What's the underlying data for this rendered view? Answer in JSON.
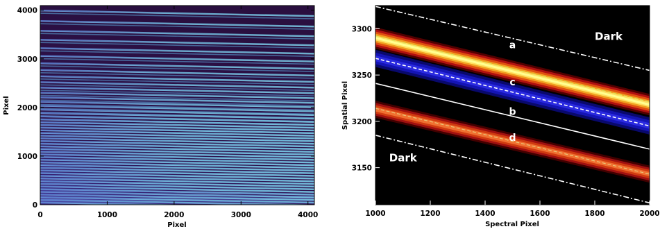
{
  "chart_data": [
    {
      "type": "heatmap",
      "description_panel": "left",
      "xlabel": "Pixel",
      "ylabel": "Pixel",
      "xlim": [
        0,
        4096
      ],
      "ylim": [
        0,
        4096
      ],
      "x_ticks": [
        0,
        1000,
        2000,
        3000,
        4000
      ],
      "y_ticks": [
        0,
        1000,
        2000,
        3000,
        4000
      ],
      "colors": {
        "background": "#2a0f3f",
        "trace": "#5a9fd2",
        "trace_highlight": "#8fd8f0"
      }
    },
    {
      "type": "heatmap",
      "description_panel": "right",
      "xlabel": "Spectral Pixel",
      "ylabel": "Spatial Pixel",
      "xlim": [
        1000,
        2000
      ],
      "ylim": [
        3110,
        3325
      ],
      "x_ticks": [
        1000,
        1200,
        1400,
        1600,
        1800,
        2000
      ],
      "y_ticks": [
        3150,
        3200,
        3250,
        3300
      ],
      "annotations": [
        {
          "text": "a",
          "x": 1500,
          "y": 3279
        },
        {
          "text": "c",
          "x": 1500,
          "y": 3239
        },
        {
          "text": "b",
          "x": 1500,
          "y": 3207
        },
        {
          "text": "d",
          "x": 1500,
          "y": 3179
        },
        {
          "text": "Dark",
          "x": 1800,
          "y": 3288
        },
        {
          "text": "Dark",
          "x": 1050,
          "y": 3157
        }
      ],
      "lines": [
        {
          "style": "dash-dot",
          "from": [
            1000,
            3324
          ],
          "to": [
            2000,
            3255
          ]
        },
        {
          "style": "dashed",
          "from": [
            1000,
            3268
          ],
          "to": [
            2000,
            3195
          ]
        },
        {
          "style": "solid",
          "from": [
            1000,
            3241
          ],
          "to": [
            2000,
            3170
          ]
        },
        {
          "style": "dash-dot",
          "from": [
            1000,
            3185
          ],
          "to": [
            2000,
            3112
          ]
        }
      ],
      "colors": {
        "background": "#000000",
        "line": "#ffffff"
      }
    }
  ]
}
